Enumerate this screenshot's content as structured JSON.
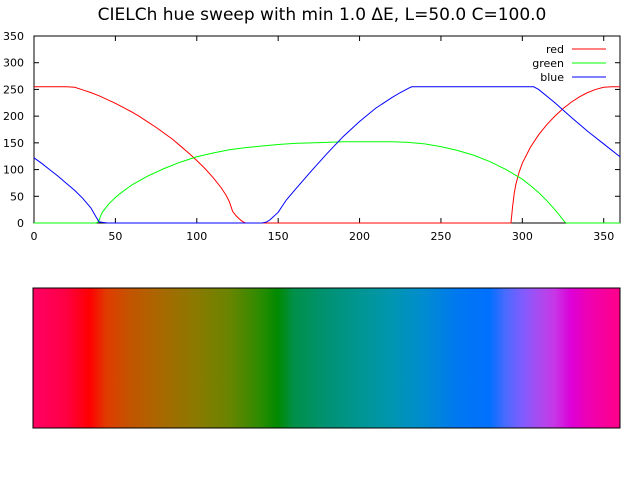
{
  "chart_data": [
    {
      "type": "line",
      "title": "CIELCh hue sweep with min 1.0 ΔE, L=50.0 C=100.0",
      "xlabel": "",
      "ylabel": "",
      "xlim": [
        0,
        360
      ],
      "ylim": [
        0,
        350
      ],
      "xticks": [
        0,
        50,
        100,
        150,
        200,
        250,
        300,
        350
      ],
      "yticks": [
        0,
        50,
        100,
        150,
        200,
        250,
        300,
        350
      ],
      "grid": false,
      "legend_position": "top-right",
      "series": [
        {
          "name": "red",
          "color": "#ff0000",
          "x": [
            0,
            5,
            10,
            15,
            20,
            25,
            30,
            35,
            40,
            45,
            50,
            55,
            60,
            65,
            70,
            75,
            80,
            85,
            90,
            95,
            100,
            105,
            110,
            115,
            118,
            120,
            122,
            124,
            126,
            128,
            130,
            135,
            140,
            150,
            200,
            250,
            290,
            293,
            294,
            295,
            296,
            298,
            300,
            305,
            310,
            315,
            320,
            325,
            330,
            335,
            340,
            345,
            350,
            355,
            360
          ],
          "y": [
            255,
            255,
            255,
            255,
            255,
            254,
            249,
            244,
            238,
            231,
            224,
            216,
            208,
            199,
            189,
            179,
            168,
            157,
            144,
            131,
            117,
            102,
            85,
            66,
            52,
            40,
            22,
            14,
            8,
            3,
            0,
            0,
            0,
            0,
            0,
            0,
            0,
            0,
            30,
            55,
            72,
            95,
            112,
            142,
            165,
            184,
            200,
            214,
            226,
            236,
            244,
            250,
            254,
            255,
            255
          ]
        },
        {
          "name": "green",
          "color": "#00ff00",
          "x": [
            0,
            10,
            20,
            30,
            35,
            38,
            39,
            40,
            41,
            42,
            44,
            46,
            50,
            55,
            60,
            70,
            80,
            90,
            100,
            110,
            120,
            130,
            140,
            150,
            160,
            170,
            180,
            190,
            200,
            210,
            220,
            230,
            240,
            250,
            260,
            270,
            280,
            290,
            300,
            305,
            310,
            315,
            320,
            323,
            325,
            326,
            327,
            328,
            330,
            340,
            350,
            360
          ],
          "y": [
            0,
            0,
            0,
            0,
            0,
            0,
            1,
            5,
            14,
            20,
            28,
            36,
            48,
            60,
            71,
            88,
            102,
            114,
            124,
            131,
            137,
            141,
            144,
            147,
            149,
            150,
            151,
            152,
            152,
            152,
            152,
            151,
            148,
            143,
            136,
            127,
            115,
            100,
            82,
            70,
            57,
            42,
            25,
            14,
            6,
            2,
            0,
            0,
            0,
            0,
            0,
            0
          ]
        },
        {
          "name": "blue",
          "color": "#0000ff",
          "x": [
            0,
            5,
            10,
            15,
            20,
            25,
            30,
            35,
            38,
            40,
            45,
            50,
            100,
            130,
            140,
            143,
            145,
            150,
            155,
            160,
            170,
            180,
            190,
            200,
            210,
            220,
            225,
            230,
            232,
            240,
            250,
            260,
            270,
            280,
            290,
            300,
            307,
            310,
            320,
            330,
            340,
            350,
            360
          ],
          "y": [
            122,
            111,
            99,
            87,
            74,
            61,
            46,
            28,
            12,
            2,
            0,
            0,
            0,
            0,
            0,
            2,
            6,
            20,
            43,
            61,
            96,
            130,
            162,
            190,
            215,
            235,
            244,
            252,
            255,
            255,
            255,
            255,
            255,
            255,
            255,
            255,
            255,
            250,
            225,
            198,
            172,
            148,
            124
          ]
        }
      ]
    },
    {
      "type": "heatmap",
      "description_values": "color strip sampled along hue from 0 to 360",
      "hues": [
        0,
        20,
        35,
        45,
        60,
        80,
        100,
        120,
        140,
        150,
        160,
        180,
        200,
        220,
        240,
        260,
        280,
        290,
        300,
        310,
        320,
        330,
        340,
        360
      ],
      "colors": [
        "#ff0066",
        "#ff0044",
        "#ff0000",
        "#e03c00",
        "#c25500",
        "#a66a00",
        "#8a7a00",
        "#6a8400",
        "#2a8c00",
        "#008a00",
        "#00904a",
        "#009272",
        "#009692",
        "#0096b0",
        "#008cd0",
        "#0078f0",
        "#0070ff",
        "#4b6bff",
        "#7f5cff",
        "#a84cf0",
        "#c836e6",
        "#dd00d8",
        "#ee00b4",
        "#ff0088"
      ]
    }
  ]
}
